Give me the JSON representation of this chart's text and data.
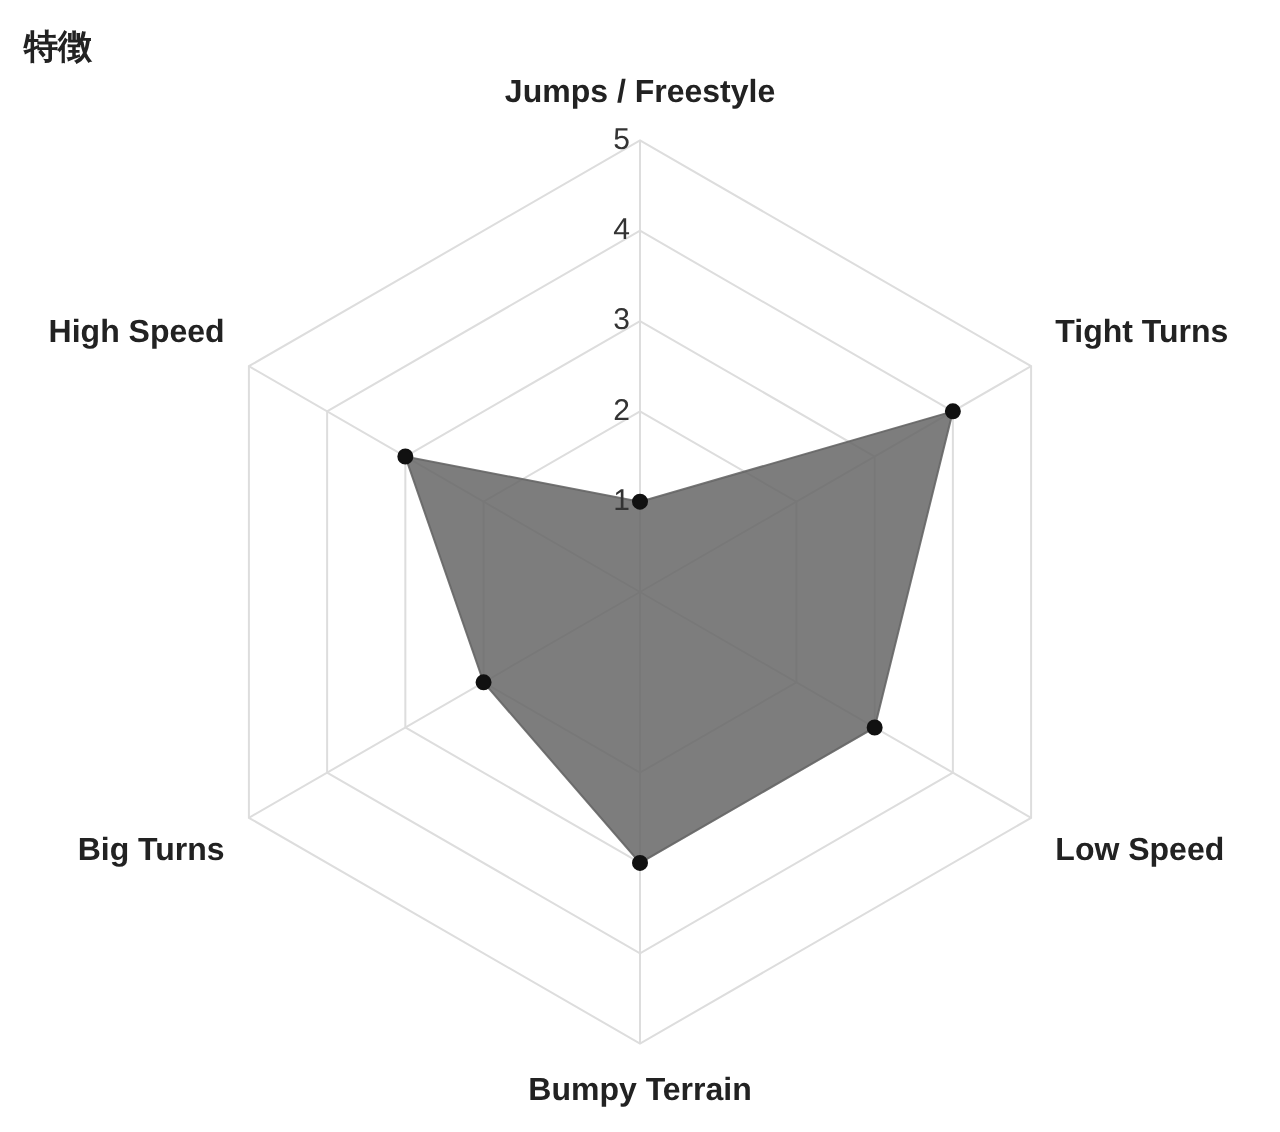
{
  "chart_data": {
    "type": "radar",
    "title": "特徴",
    "categories": [
      "Jumps / Freestyle",
      "Tight Turns",
      "Low Speed",
      "Bumpy Terrain",
      "Big Turns",
      "High Speed"
    ],
    "series": [
      {
        "color": "#666666",
        "values": [
          1,
          4,
          3,
          3,
          2,
          3
        ]
      }
    ],
    "ylim": [
      0,
      5
    ],
    "yticks": [
      1,
      2,
      3,
      4,
      5
    ],
    "grid": true,
    "legend": false,
    "marker": "circle"
  }
}
